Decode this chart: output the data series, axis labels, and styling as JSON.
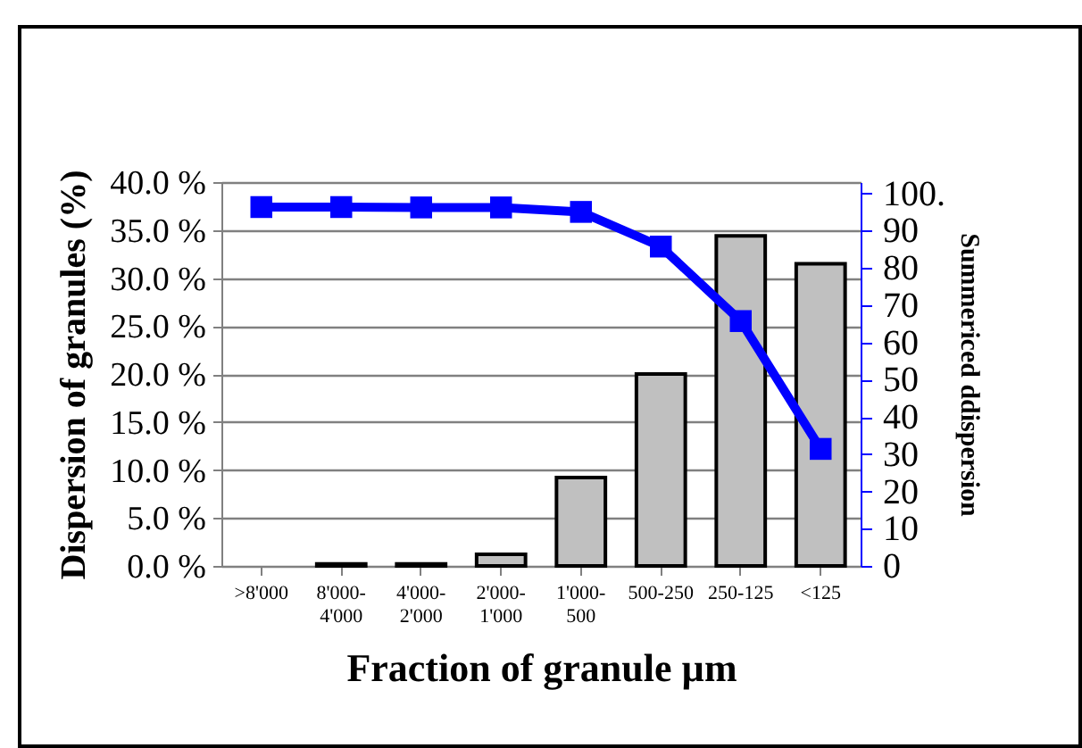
{
  "chart_data": {
    "type": "bar",
    "categories": [
      ">8'000",
      "8'000-4'000",
      "4'000-2'000",
      "2'000-1'000",
      "1'000-500",
      "500-250",
      "250-125",
      "<125"
    ],
    "series": [
      {
        "color": "#c0c0c0",
        "values": [
          0,
          0.2,
          0.2,
          1.2,
          9.2,
          20.0,
          34.4,
          31.5
        ]
      },
      {
        "type": "line",
        "axis": "y2",
        "color": "#0000ff",
        "values": [
          96.3,
          96.3,
          96.2,
          96.2,
          95.0,
          85.7,
          65.7,
          31.4
        ]
      }
    ],
    "xlabel": "Fraction of granule µm",
    "ylabel": "Dispersion of granules (%)",
    "y2label": "Summericed ddispersion",
    "ylim": [
      0,
      40
    ],
    "yticks": [
      {
        "value": 0,
        "label": "0.0 %"
      },
      {
        "value": 5,
        "label": "5.0 %"
      },
      {
        "value": 10,
        "label": "10.0 %"
      },
      {
        "value": 15,
        "label": "15.0 %"
      },
      {
        "value": 20,
        "label": "20.0 %"
      },
      {
        "value": 25,
        "label": "25.0 %"
      },
      {
        "value": 30,
        "label": "30.0 %"
      },
      {
        "value": 35,
        "label": "35.0 %"
      },
      {
        "value": 40,
        "label": "40.0 %"
      }
    ],
    "y2lim": [
      0,
      103
    ],
    "y2ticks": [
      0,
      10,
      20,
      30,
      40,
      50,
      60,
      70,
      80,
      90,
      {
        "value": 100,
        "label": "100."
      }
    ],
    "grid": "y",
    "marker": "square",
    "line_style": "solid"
  }
}
